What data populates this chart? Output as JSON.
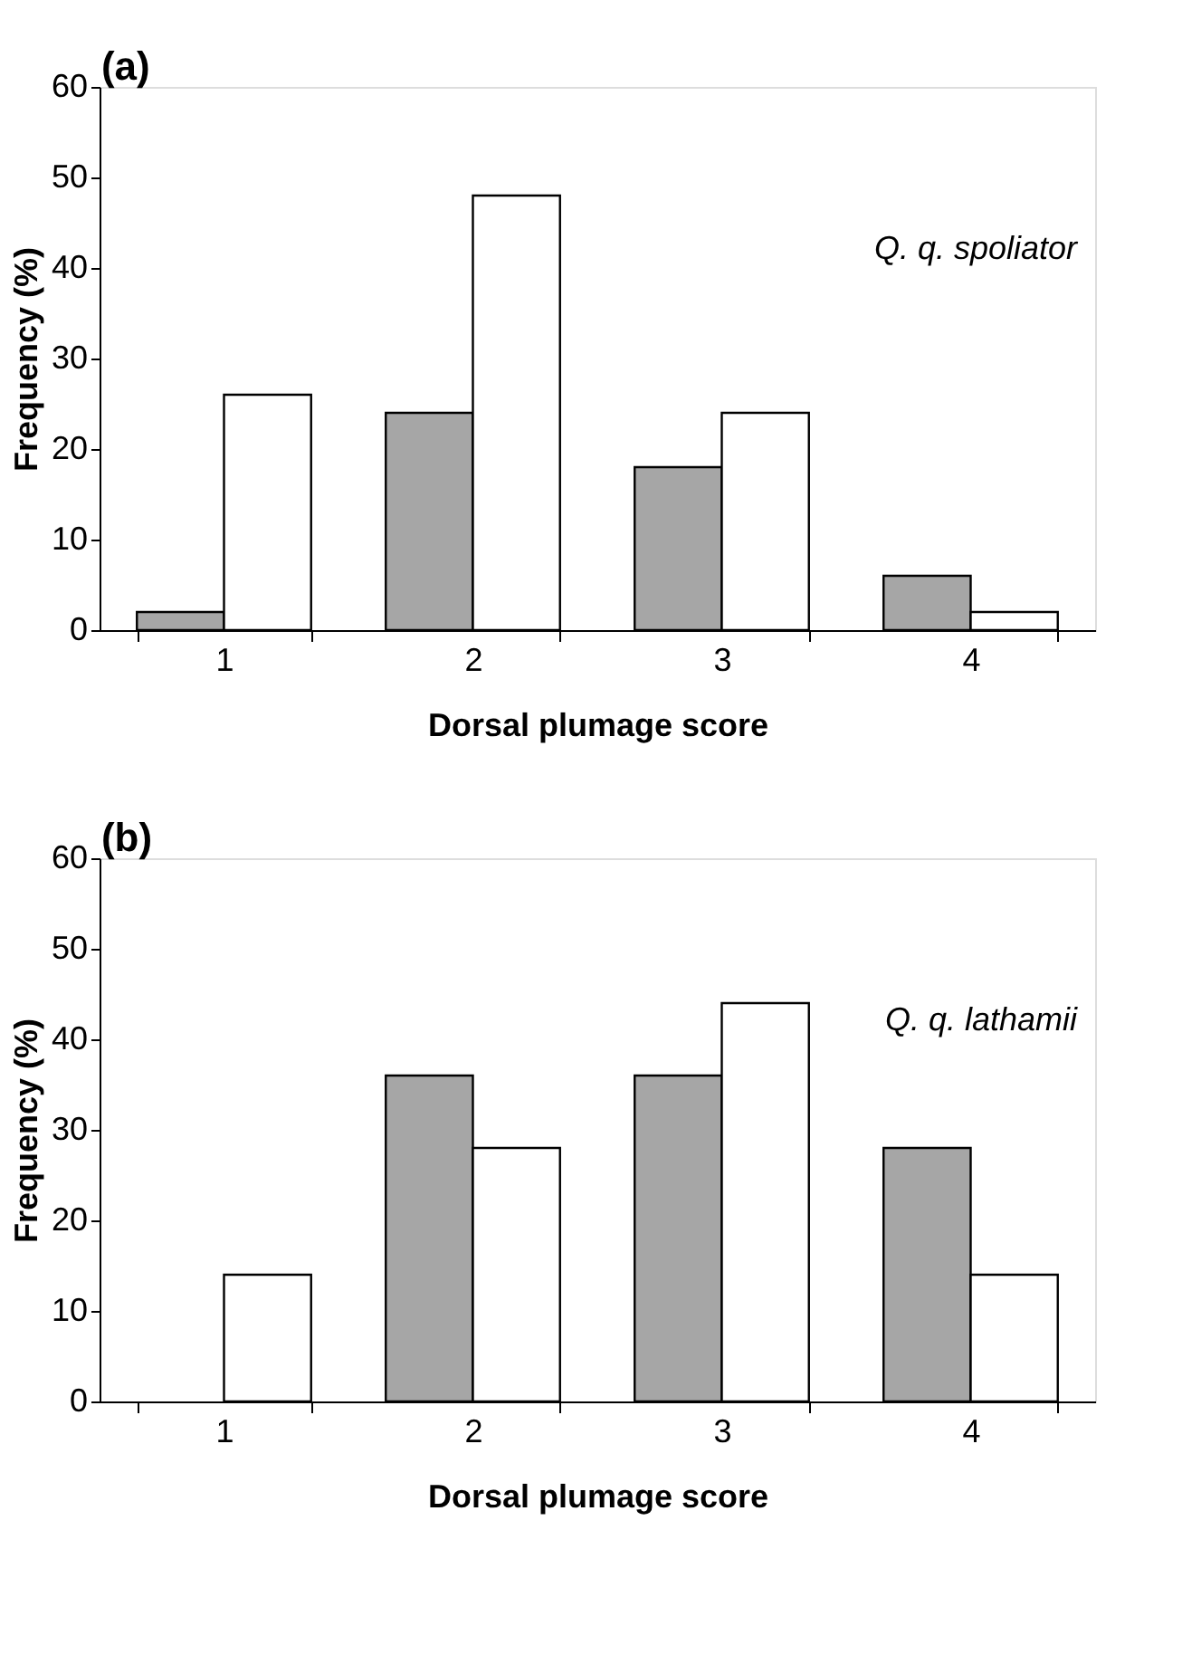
{
  "chart_data": [
    {
      "type": "bar",
      "title": "(a)",
      "xlabel": "Dorsal plumage score",
      "ylabel": "Frequency (%)",
      "categories": [
        "1",
        "2",
        "3",
        "4"
      ],
      "series": [
        {
          "color": "#a6a6a6",
          "values": [
            2,
            24,
            18,
            6
          ]
        },
        {
          "color": "#ffffff",
          "values": [
            26,
            48,
            24,
            2
          ]
        }
      ],
      "ylim": [
        0,
        60
      ],
      "yticks": [
        0,
        10,
        20,
        30,
        40,
        50,
        60
      ],
      "grid": false,
      "legend": false,
      "annotations": [
        "Q. q. spoliator"
      ]
    },
    {
      "type": "bar",
      "title": "(b)",
      "xlabel": "Dorsal plumage score",
      "ylabel": "Frequency (%)",
      "categories": [
        "1",
        "2",
        "3",
        "4"
      ],
      "series": [
        {
          "color": "#a6a6a6",
          "values": [
            null,
            36,
            36,
            28
          ]
        },
        {
          "color": "#ffffff",
          "values": [
            14,
            28,
            44,
            14
          ]
        }
      ],
      "ylim": [
        0,
        60
      ],
      "yticks": [
        0,
        10,
        20,
        30,
        40,
        50,
        60
      ],
      "grid": false,
      "legend": false,
      "annotations": [
        "Q. q. lathamii"
      ]
    }
  ]
}
